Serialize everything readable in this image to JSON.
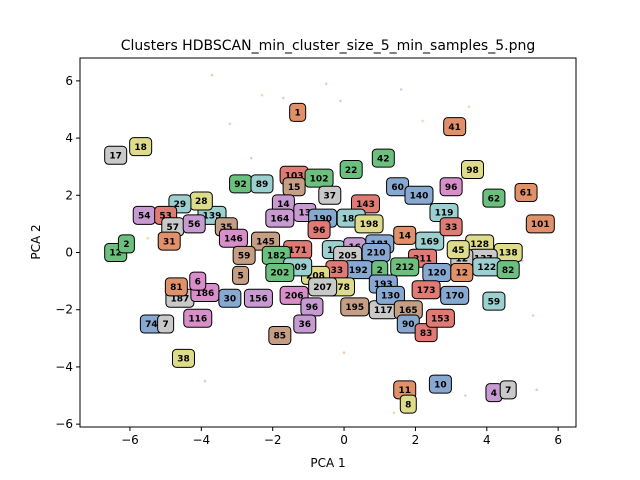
{
  "chart_data": {
    "type": "scatter",
    "title": "Clusters HDBSCAN_min_cluster_size_5_min_samples_5.png",
    "xlabel": "PCA 1",
    "ylabel": "PCA 2",
    "xlim": [
      -7.4,
      6.5
    ],
    "ylim": [
      -6.1,
      6.8
    ],
    "x_ticks": [
      -6,
      -4,
      -2,
      0,
      2,
      4,
      6
    ],
    "y_ticks": [
      -6,
      -4,
      -2,
      0,
      2,
      4,
      6
    ],
    "x_tick_labels": [
      "−6",
      "−4",
      "−2",
      "0",
      "2",
      "4",
      "6"
    ],
    "y_tick_labels": [
      "−6",
      "−4",
      "−2",
      "0",
      "2",
      "4",
      "6"
    ],
    "grid": false,
    "palette": [
      "#e0916a",
      "#6cc07e",
      "#c9c9c9",
      "#e07a74",
      "#9ccfcf",
      "#86a8d1",
      "#c79bd1",
      "#dedb8a",
      "#c69e84",
      "#d88fc9"
    ],
    "cluster_labels": [
      {
        "label": "1",
        "x": -1.3,
        "y": 4.9,
        "color": "#e0916a"
      },
      {
        "label": "41",
        "x": 3.1,
        "y": 4.4,
        "color": "#e0916a"
      },
      {
        "label": "98",
        "x": 3.6,
        "y": 2.9,
        "color": "#dedb8a"
      },
      {
        "label": "17",
        "x": -6.4,
        "y": 3.4,
        "color": "#c9c9c9"
      },
      {
        "label": "18",
        "x": -5.7,
        "y": 3.7,
        "color": "#dedb8a"
      },
      {
        "label": "22",
        "x": 0.2,
        "y": 2.9,
        "color": "#6cc07e"
      },
      {
        "label": "42",
        "x": 1.1,
        "y": 3.3,
        "color": "#6cc07e"
      },
      {
        "label": "92",
        "x": -2.9,
        "y": 2.4,
        "color": "#6cc07e"
      },
      {
        "label": "89",
        "x": -2.3,
        "y": 2.4,
        "color": "#9ccfcf"
      },
      {
        "label": "103",
        "x": -1.4,
        "y": 2.7,
        "color": "#e07a74"
      },
      {
        "label": "102",
        "x": -0.7,
        "y": 2.6,
        "color": "#6cc07e"
      },
      {
        "label": "15",
        "x": -1.4,
        "y": 2.3,
        "color": "#c69e84"
      },
      {
        "label": "37",
        "x": -0.4,
        "y": 2.0,
        "color": "#c9c9c9"
      },
      {
        "label": "60",
        "x": 1.5,
        "y": 2.3,
        "color": "#86a8d1"
      },
      {
        "label": "140",
        "x": 2.1,
        "y": 2.0,
        "color": "#86a8d1"
      },
      {
        "label": "96",
        "x": 3.0,
        "y": 2.3,
        "color": "#d88fc9"
      },
      {
        "label": "62",
        "x": 4.2,
        "y": 1.9,
        "color": "#6cc07e"
      },
      {
        "label": "61",
        "x": 5.1,
        "y": 2.1,
        "color": "#e0916a"
      },
      {
        "label": "101",
        "x": 5.5,
        "y": 1.0,
        "color": "#e0916a"
      },
      {
        "label": "143",
        "x": 0.6,
        "y": 1.7,
        "color": "#e07a74"
      },
      {
        "label": "119",
        "x": 2.8,
        "y": 1.4,
        "color": "#9ccfcf"
      },
      {
        "label": "14",
        "x": -1.7,
        "y": 1.7,
        "color": "#c79bd1"
      },
      {
        "label": "13",
        "x": -1.1,
        "y": 1.4,
        "color": "#c79bd1"
      },
      {
        "label": "164",
        "x": -1.8,
        "y": 1.2,
        "color": "#c79bd1"
      },
      {
        "label": "190",
        "x": -0.6,
        "y": 1.2,
        "color": "#86a8d1"
      },
      {
        "label": "188",
        "x": 0.2,
        "y": 1.2,
        "color": "#9ccfcf"
      },
      {
        "label": "198",
        "x": 0.7,
        "y": 1.0,
        "color": "#dedb8a"
      },
      {
        "label": "139",
        "x": -3.7,
        "y": 1.3,
        "color": "#9ccfcf"
      },
      {
        "label": "28",
        "x": -4.0,
        "y": 1.8,
        "color": "#dedb8a"
      },
      {
        "label": "29",
        "x": -4.6,
        "y": 1.7,
        "color": "#9ccfcf"
      },
      {
        "label": "54",
        "x": -5.6,
        "y": 1.3,
        "color": "#c79bd1"
      },
      {
        "label": "53",
        "x": -5.0,
        "y": 1.3,
        "color": "#e07a74"
      },
      {
        "label": "57",
        "x": -4.8,
        "y": 0.9,
        "color": "#c9c9c9"
      },
      {
        "label": "56",
        "x": -4.2,
        "y": 1.0,
        "color": "#c79bd1"
      },
      {
        "label": "35",
        "x": -3.3,
        "y": 0.9,
        "color": "#c69e84"
      },
      {
        "label": "31",
        "x": -4.9,
        "y": 0.4,
        "color": "#e0916a"
      },
      {
        "label": "12",
        "x": -6.4,
        "y": 0.0,
        "color": "#6cc07e"
      },
      {
        "label": "2",
        "x": -6.1,
        "y": 0.3,
        "color": "#6cc07e"
      },
      {
        "label": "146",
        "x": -3.1,
        "y": 0.5,
        "color": "#d88fc9"
      },
      {
        "label": "145",
        "x": -2.2,
        "y": 0.4,
        "color": "#c69e84"
      },
      {
        "label": "171",
        "x": -1.3,
        "y": 0.1,
        "color": "#e07a74"
      },
      {
        "label": "96",
        "x": -0.7,
        "y": 0.8,
        "color": "#e07a74"
      },
      {
        "label": "182",
        "x": -1.9,
        "y": -0.1,
        "color": "#6cc07e"
      },
      {
        "label": "19",
        "x": -0.3,
        "y": 0.1,
        "color": "#9ccfcf"
      },
      {
        "label": "169",
        "x": 2.4,
        "y": 0.4,
        "color": "#9ccfcf"
      },
      {
        "label": "14",
        "x": 1.7,
        "y": 0.6,
        "color": "#e0916a"
      },
      {
        "label": "33",
        "x": 3.0,
        "y": 0.9,
        "color": "#e07a74"
      },
      {
        "label": "128",
        "x": 3.8,
        "y": 0.3,
        "color": "#dedb8a"
      },
      {
        "label": "138",
        "x": 4.6,
        "y": 0.0,
        "color": "#dedb8a"
      },
      {
        "label": "137",
        "x": 3.9,
        "y": -0.2,
        "color": "#c9c9c9"
      },
      {
        "label": "12",
        "x": 3.3,
        "y": -0.2,
        "color": "#c9c9c9"
      },
      {
        "label": "45",
        "x": 3.2,
        "y": 0.1,
        "color": "#dedb8a"
      },
      {
        "label": "122",
        "x": 4.0,
        "y": -0.5,
        "color": "#9ccfcf"
      },
      {
        "label": "82",
        "x": 4.6,
        "y": -0.6,
        "color": "#6cc07e"
      },
      {
        "label": "181",
        "x": 1.0,
        "y": 0.3,
        "color": "#86a8d1"
      },
      {
        "label": "16",
        "x": 0.3,
        "y": 0.2,
        "color": "#c79bd1"
      },
      {
        "label": "205",
        "x": 0.1,
        "y": -0.1,
        "color": "#c9c9c9"
      },
      {
        "label": "210",
        "x": 0.9,
        "y": 0.0,
        "color": "#86a8d1"
      },
      {
        "label": "211",
        "x": 2.2,
        "y": -0.2,
        "color": "#e07a74"
      },
      {
        "label": "212",
        "x": 1.7,
        "y": -0.5,
        "color": "#6cc07e"
      },
      {
        "label": "120",
        "x": 2.6,
        "y": -0.7,
        "color": "#86a8d1"
      },
      {
        "label": "12",
        "x": 3.3,
        "y": -0.7,
        "color": "#e0916a"
      },
      {
        "label": "173",
        "x": 2.3,
        "y": -1.3,
        "color": "#e07a74"
      },
      {
        "label": "170",
        "x": 3.1,
        "y": -1.5,
        "color": "#86a8d1"
      },
      {
        "label": "59",
        "x": 4.2,
        "y": -1.7,
        "color": "#9ccfcf"
      },
      {
        "label": "192",
        "x": 0.4,
        "y": -0.6,
        "color": "#86a8d1"
      },
      {
        "label": "33",
        "x": -0.2,
        "y": -0.6,
        "color": "#e07a74"
      },
      {
        "label": "2",
        "x": 1.0,
        "y": -0.6,
        "color": "#6cc07e"
      },
      {
        "label": "193",
        "x": 1.1,
        "y": -1.1,
        "color": "#86a8d1"
      },
      {
        "label": "178",
        "x": -0.1,
        "y": -1.2,
        "color": "#dedb8a"
      },
      {
        "label": "208",
        "x": -0.8,
        "y": -0.8,
        "color": "#dedb8a"
      },
      {
        "label": "207",
        "x": -0.6,
        "y": -1.2,
        "color": "#c9c9c9"
      },
      {
        "label": "209",
        "x": -1.3,
        "y": -0.5,
        "color": "#9ccfcf"
      },
      {
        "label": "202",
        "x": -1.8,
        "y": -0.7,
        "color": "#6cc07e"
      },
      {
        "label": "59",
        "x": -2.8,
        "y": -0.1,
        "color": "#c69e84"
      },
      {
        "label": "5",
        "x": -2.9,
        "y": -0.8,
        "color": "#c69e84"
      },
      {
        "label": "206",
        "x": -1.4,
        "y": -1.5,
        "color": "#d88fc9"
      },
      {
        "label": "156",
        "x": -2.4,
        "y": -1.6,
        "color": "#c79bd1"
      },
      {
        "label": "96",
        "x": -0.9,
        "y": -1.9,
        "color": "#c79bd1"
      },
      {
        "label": "36",
        "x": -1.1,
        "y": -2.5,
        "color": "#c79bd1"
      },
      {
        "label": "85",
        "x": -1.8,
        "y": -2.9,
        "color": "#c69e84"
      },
      {
        "label": "195",
        "x": 0.3,
        "y": -1.9,
        "color": "#c69e84"
      },
      {
        "label": "117",
        "x": 1.1,
        "y": -2.0,
        "color": "#c9c9c9"
      },
      {
        "label": "130",
        "x": 1.3,
        "y": -1.5,
        "color": "#86a8d1"
      },
      {
        "label": "165",
        "x": 1.8,
        "y": -2.0,
        "color": "#c69e84"
      },
      {
        "label": "90",
        "x": 1.8,
        "y": -2.5,
        "color": "#86a8d1"
      },
      {
        "label": "83",
        "x": 2.3,
        "y": -2.8,
        "color": "#e07a74"
      },
      {
        "label": "153",
        "x": 2.7,
        "y": -2.3,
        "color": "#e07a74"
      },
      {
        "label": "187",
        "x": -4.6,
        "y": -1.6,
        "color": "#c9c9c9"
      },
      {
        "label": "186",
        "x": -3.9,
        "y": -1.4,
        "color": "#d88fc9"
      },
      {
        "label": "81",
        "x": -4.7,
        "y": -1.2,
        "color": "#e0916a"
      },
      {
        "label": "6",
        "x": -4.1,
        "y": -1.0,
        "color": "#d88fc9"
      },
      {
        "label": "30",
        "x": -3.2,
        "y": -1.6,
        "color": "#86a8d1"
      },
      {
        "label": "116",
        "x": -4.1,
        "y": -2.3,
        "color": "#d88fc9"
      },
      {
        "label": "74",
        "x": -5.4,
        "y": -2.5,
        "color": "#86a8d1"
      },
      {
        "label": "7",
        "x": -5.0,
        "y": -2.5,
        "color": "#c9c9c9"
      },
      {
        "label": "38",
        "x": -4.5,
        "y": -3.7,
        "color": "#dedb8a"
      },
      {
        "label": "10",
        "x": 2.7,
        "y": -4.6,
        "color": "#86a8d1"
      },
      {
        "label": "11",
        "x": 1.7,
        "y": -4.8,
        "color": "#e0916a"
      },
      {
        "label": "8",
        "x": 1.8,
        "y": -5.3,
        "color": "#dedb8a"
      },
      {
        "label": "4",
        "x": 4.2,
        "y": -4.9,
        "color": "#c79bd1"
      },
      {
        "label": "7",
        "x": 4.6,
        "y": -4.8,
        "color": "#c9c9c9"
      }
    ],
    "background_points": [
      {
        "x": -3.7,
        "y": 6.2
      },
      {
        "x": -0.5,
        "y": 5.9
      },
      {
        "x": -2.3,
        "y": 5.5
      },
      {
        "x": -1.7,
        "y": 5.4
      },
      {
        "x": -0.1,
        "y": 5.3
      },
      {
        "x": 1.6,
        "y": 5.7
      },
      {
        "x": 2.2,
        "y": 4.6
      },
      {
        "x": 3.3,
        "y": 2.6
      },
      {
        "x": -1.5,
        "y": 4.6
      },
      {
        "x": -3.2,
        "y": 4.5
      },
      {
        "x": -5.5,
        "y": 0.5
      },
      {
        "x": 5.0,
        "y": -0.3
      },
      {
        "x": 5.4,
        "y": -4.8
      },
      {
        "x": 3.4,
        "y": -5.0
      },
      {
        "x": 1.4,
        "y": -5.6
      },
      {
        "x": -3.9,
        "y": -4.5
      },
      {
        "x": 0.0,
        "y": -3.5
      },
      {
        "x": 5.3,
        "y": -2.2
      },
      {
        "x": 3.5,
        "y": 5.1
      },
      {
        "x": -2.6,
        "y": 3.3
      }
    ]
  }
}
